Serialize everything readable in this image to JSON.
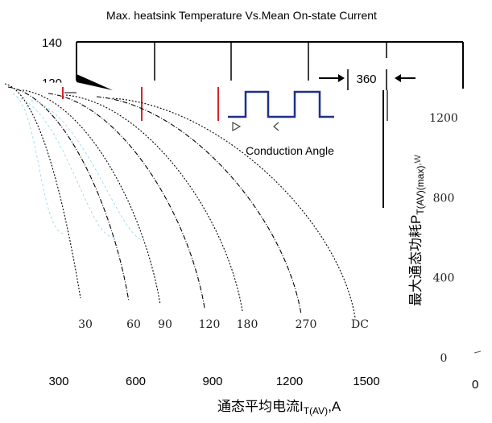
{
  "chart_data": {
    "type": "line",
    "title": "Max. heatsink Temperature Vs.Mean On-state Current",
    "left_axis": {
      "ticks": [
        "140",
        "120"
      ]
    },
    "x_axis": {
      "label": "通态平均电流I",
      "label_sub": "T(AV)",
      "label_suffix": ",A",
      "ticks": [
        300,
        600,
        900,
        1200,
        1500
      ],
      "lim": [
        0,
        1600
      ]
    },
    "right_axis": {
      "label": "最大通态功耗P",
      "label_sub": "T(AV)(max)",
      "label_suffix": ",W",
      "ticks": [
        1200,
        800,
        400,
        0
      ],
      "lim": [
        0,
        1500
      ]
    },
    "mirror_axis": {
      "ticks": [
        0
      ]
    },
    "inset": {
      "angle_label": "360",
      "caption": "Conduction Angle"
    },
    "series": [
      {
        "name": "30",
        "points": [
          [
            0,
            1500
          ],
          [
            1,
            630
          ],
          [
            2,
            0
          ]
        ]
      },
      {
        "name": "60",
        "points": [
          [
            0,
            1500
          ],
          [
            1,
            660
          ],
          [
            2,
            0
          ]
        ]
      },
      {
        "name": "90",
        "points": [
          [
            0,
            1500
          ],
          [
            1,
            690
          ],
          [
            2,
            0
          ]
        ]
      },
      {
        "name": "120",
        "points": [
          [
            0,
            1500
          ],
          [
            1,
            720
          ],
          [
            2,
            0
          ]
        ]
      },
      {
        "name": "180",
        "points": [
          [
            0,
            1500
          ],
          [
            1,
            760
          ],
          [
            2,
            0
          ]
        ]
      },
      {
        "name": "270",
        "points": [
          [
            0,
            1500
          ],
          [
            1,
            800
          ],
          [
            2,
            0
          ]
        ]
      },
      {
        "name": "DC",
        "points": [
          [
            0,
            1500
          ],
          [
            1,
            840
          ],
          [
            2,
            0
          ]
        ]
      }
    ],
    "colors": {
      "axis": "#000000",
      "curve": "#000000",
      "marker": "#d8222a",
      "waveform": "#1f2f8c",
      "hint": "#8fd6e8"
    }
  }
}
